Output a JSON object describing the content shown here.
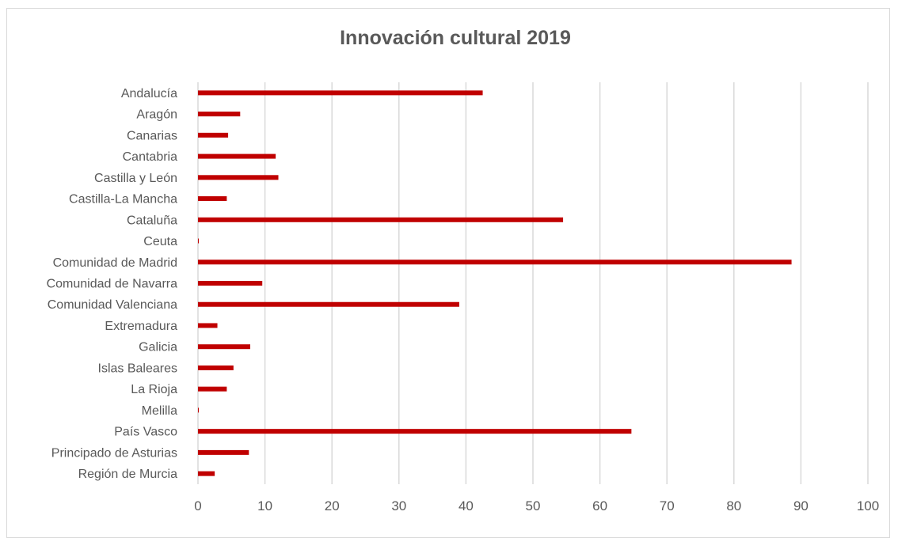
{
  "chart_data": {
    "type": "bar",
    "orientation": "horizontal",
    "title": "Innovación cultural 2019",
    "xlabel": "",
    "ylabel": "",
    "categories": [
      "Andalucía",
      "Aragón",
      "Canarias",
      "Cantabria",
      "Castilla y León",
      "Castilla-La Mancha",
      "Cataluña",
      "Ceuta",
      "Comunidad de Madrid",
      "Comunidad de Navarra",
      "Comunidad Valenciana",
      "Extremadura",
      "Galicia",
      "Islas Baleares",
      "La Rioja",
      "Melilla",
      "País Vasco",
      "Principado de Asturias",
      "Región de Murcia"
    ],
    "values": [
      42.5,
      6.3,
      4.5,
      11.6,
      12.0,
      4.3,
      54.5,
      0.1,
      88.6,
      9.6,
      39.0,
      2.9,
      7.8,
      5.3,
      4.3,
      0.1,
      64.7,
      7.6,
      2.5
    ],
    "xlim": [
      0,
      100
    ],
    "xticks": [
      0,
      10,
      20,
      30,
      40,
      50,
      60,
      70,
      80,
      90,
      100
    ],
    "grid": "vertical",
    "bar_color": "#c00000",
    "grid_color": "#d9d9d9",
    "text_color": "#595959"
  }
}
